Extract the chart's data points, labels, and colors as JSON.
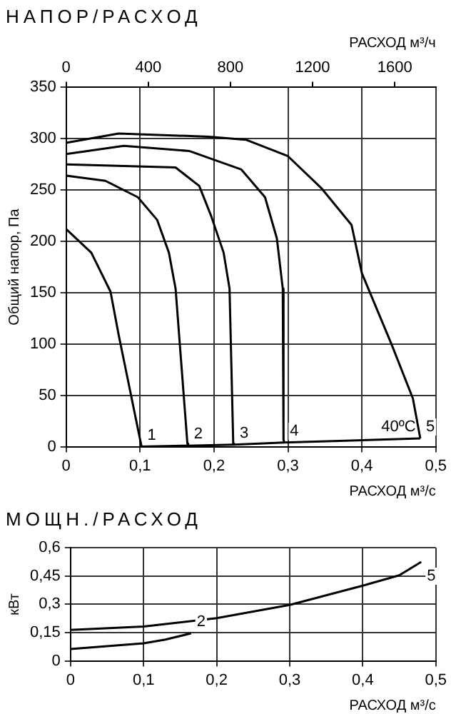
{
  "chart_data": [
    {
      "type": "line",
      "title": "НАПОР/РАСХОД",
      "xlabel": "РАСХОД м³/с",
      "ylabel": "Общий напор, Па",
      "x2label": "РАСХОД м³/ч",
      "xlim": [
        0,
        0.5
      ],
      "xticks": [
        0,
        {
          "value": 0.1,
          "label": "0,1"
        },
        {
          "value": 0.2,
          "label": "0,2"
        },
        {
          "value": 0.3,
          "label": "0,3"
        },
        {
          "value": 0.4,
          "label": "0,4"
        },
        {
          "value": 0.5,
          "label": "0,5"
        }
      ],
      "ylim": [
        0,
        350
      ],
      "yticks": [
        0,
        50,
        100,
        150,
        200,
        250,
        300,
        350
      ],
      "x2lim": [
        0,
        1800
      ],
      "x2ticks": [
        0,
        400,
        800,
        1200,
        1600
      ],
      "grid": true,
      "marker": "none",
      "line_style": "solid",
      "series": [
        {
          "name": "1",
          "color": "#000000",
          "x": [
            0,
            0.034,
            0.06,
            0.071,
            0.102
          ],
          "values": [
            212,
            189,
            151,
            109,
            0
          ]
        },
        {
          "name": "2",
          "color": "#000000",
          "x": [
            0,
            0.053,
            0.097,
            0.123,
            0.139,
            0.148,
            0.164,
            0.165
          ],
          "values": [
            264,
            259,
            243,
            221,
            189,
            154,
            3,
            1
          ]
        },
        {
          "name": "3",
          "color": "#000000",
          "x": [
            0,
            0.148,
            0.18,
            0.196,
            0.213,
            0.221,
            0.226,
            0.227
          ],
          "values": [
            275,
            272,
            254,
            225,
            189,
            154,
            3,
            2
          ]
        },
        {
          "name": "4",
          "color": "#000000",
          "x": [
            0,
            0.078,
            0.167,
            0.237,
            0.269,
            0.285,
            0.293,
            0.294,
            0.295
          ],
          "values": [
            285,
            293,
            288,
            270,
            243,
            203,
            154,
            7,
            4
          ]
        },
        {
          "name": "5",
          "color": "#000000",
          "x": [
            0,
            0.071,
            0.193,
            0.243,
            0.3,
            0.345,
            0.386,
            0.4,
            0.44,
            0.469,
            0.479
          ],
          "values": [
            296,
            305,
            302,
            299,
            283,
            252,
            216,
            169,
            100,
            47,
            8
          ]
        },
        {
          "color": "#000000",
          "x": [
            0.102,
            0.165,
            0.227,
            0.295,
            0.479
          ],
          "values": [
            0,
            1,
            2,
            4,
            8
          ]
        }
      ],
      "annotations": [
        "40ºC"
      ]
    },
    {
      "type": "line",
      "title": "МОЩН./РАСХОД",
      "xlabel": "РАСХОД м³/с",
      "ylabel": "кВт",
      "xlim": [
        0,
        0.5
      ],
      "xticks": [
        0,
        {
          "value": 0.1,
          "label": "0,1"
        },
        {
          "value": 0.2,
          "label": "0,2"
        },
        {
          "value": 0.3,
          "label": "0,3"
        },
        {
          "value": 0.4,
          "label": "0,4"
        },
        {
          "value": 0.5,
          "label": "0,5"
        }
      ],
      "ylim": [
        0,
        0.6
      ],
      "yticks": [
        0,
        {
          "value": 0.15,
          "label": "0,15"
        },
        {
          "value": 0.3,
          "label": "0,3"
        },
        {
          "value": 0.45,
          "label": "0,45"
        },
        {
          "value": 0.6,
          "label": "0,6"
        }
      ],
      "grid": true,
      "marker": "none",
      "line_style": "solid",
      "series": [
        {
          "name": "5",
          "color": "#000000",
          "x": [
            0,
            0.1,
            0.2,
            0.3,
            0.4,
            0.45,
            0.48
          ],
          "values": [
            0.164,
            0.182,
            0.227,
            0.297,
            0.399,
            0.454,
            0.525
          ]
        },
        {
          "name": "2",
          "color": "#000000",
          "x": [
            0,
            0.1,
            0.13,
            0.165
          ],
          "values": [
            0.063,
            0.093,
            0.113,
            0.146
          ]
        }
      ]
    }
  ]
}
